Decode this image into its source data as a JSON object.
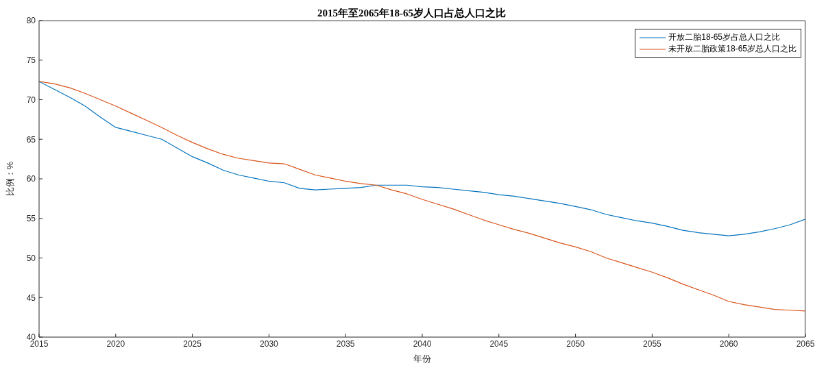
{
  "chart_data": {
    "type": "line",
    "title": "2015年至2065年18-65岁人口占总人口之比",
    "xlabel": "年份",
    "ylabel": "比例：%",
    "x": [
      2015,
      2016,
      2017,
      2018,
      2019,
      2020,
      2021,
      2022,
      2023,
      2024,
      2025,
      2026,
      2027,
      2028,
      2029,
      2030,
      2031,
      2032,
      2033,
      2034,
      2035,
      2036,
      2037,
      2038,
      2039,
      2040,
      2041,
      2042,
      2043,
      2044,
      2045,
      2046,
      2047,
      2048,
      2049,
      2050,
      2051,
      2052,
      2053,
      2054,
      2055,
      2056,
      2057,
      2058,
      2059,
      2060,
      2061,
      2062,
      2063,
      2064,
      2065
    ],
    "series": [
      {
        "name": "开放二胎18-65岁占总人口之比",
        "color": "#0072bd",
        "values": [
          72.3,
          71.3,
          70.3,
          69.2,
          67.8,
          66.5,
          66.0,
          65.5,
          65.0,
          63.9,
          62.8,
          62.0,
          61.1,
          60.5,
          60.1,
          59.7,
          59.5,
          58.8,
          58.6,
          58.7,
          58.8,
          58.9,
          59.2,
          59.2,
          59.2,
          59.0,
          58.9,
          58.7,
          58.5,
          58.3,
          58.0,
          57.8,
          57.5,
          57.2,
          56.9,
          56.5,
          56.1,
          55.5,
          55.1,
          54.7,
          54.4,
          54.0,
          53.5,
          53.2,
          53.0,
          52.8,
          53.0,
          53.3,
          53.7,
          54.2,
          54.9
        ]
      },
      {
        "name": "未开放二胎政策18-65岁总人口之比",
        "color": "#d95319",
        "values": [
          72.3,
          72.0,
          71.5,
          70.8,
          70.0,
          69.2,
          68.3,
          67.4,
          66.5,
          65.5,
          64.6,
          63.8,
          63.1,
          62.6,
          62.3,
          62.0,
          61.9,
          61.2,
          60.5,
          60.1,
          59.7,
          59.4,
          59.2,
          58.6,
          58.1,
          57.4,
          56.8,
          56.2,
          55.5,
          54.8,
          54.2,
          53.6,
          53.1,
          52.5,
          51.9,
          51.4,
          50.8,
          50.0,
          49.4,
          48.8,
          48.2,
          47.5,
          46.7,
          46.0,
          45.3,
          44.5,
          44.1,
          43.8,
          43.5,
          43.4,
          43.3
        ]
      }
    ],
    "xlim": [
      2015,
      2065
    ],
    "xticks": [
      2015,
      2020,
      2025,
      2030,
      2035,
      2040,
      2045,
      2050,
      2055,
      2060,
      2065
    ],
    "ylim": [
      40,
      80
    ],
    "yticks": [
      40,
      45,
      50,
      55,
      60,
      65,
      70,
      75,
      80
    ],
    "grid": false,
    "legend": "top right",
    "marker": "none",
    "line_style": "solid"
  }
}
